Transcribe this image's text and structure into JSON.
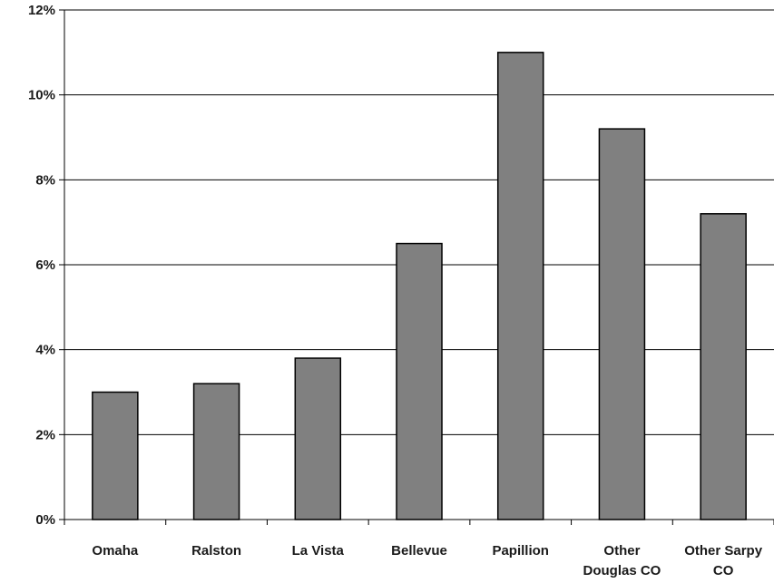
{
  "chart_data": {
    "type": "bar",
    "categories": [
      [
        "Omaha"
      ],
      [
        "Ralston"
      ],
      [
        "La Vista"
      ],
      [
        "Bellevue"
      ],
      [
        "Papillion"
      ],
      [
        "Other",
        "Douglas CO"
      ],
      [
        "Other Sarpy",
        "CO"
      ]
    ],
    "values": [
      3.0,
      3.2,
      3.8,
      6.5,
      11.0,
      9.2,
      7.2
    ],
    "ylim": [
      0,
      12
    ],
    "yticks": [
      0,
      2,
      4,
      6,
      8,
      10,
      12
    ],
    "ytick_labels": [
      "0%",
      "2%",
      "4%",
      "6%",
      "8%",
      "10%",
      "12%"
    ],
    "title": "",
    "xlabel": "",
    "ylabel": "",
    "grid": true,
    "bar_color": "#808080",
    "bar_edge_color": "#000000",
    "grid_color": "#000000"
  }
}
